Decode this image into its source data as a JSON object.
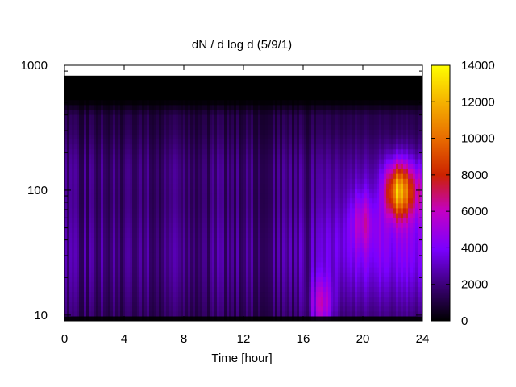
{
  "chart_data": {
    "type": "heatmap",
    "title": "dN / d log d (5/9/1)",
    "xlabel": "Time [hour]",
    "ylabel": "",
    "x_range": [
      0,
      24
    ],
    "y_range": [
      9,
      1000
    ],
    "y_scale": "log",
    "x_ticks": [
      "0",
      "4",
      "8",
      "12",
      "16",
      "20",
      "24"
    ],
    "y_ticks": [
      "10",
      "100",
      "1000"
    ],
    "colorbar": {
      "range": [
        0,
        14000
      ],
      "ticks": [
        "0",
        "2000",
        "4000",
        "6000",
        "8000",
        "10000",
        "12000",
        "14000"
      ],
      "palette": [
        "#000000",
        "#3c0078",
        "#7a00ff",
        "#c400c4",
        "#cc2200",
        "#e86a00",
        "#f5b400",
        "#ffff00"
      ]
    },
    "features": [
      {
        "t": 0,
        "d": 30,
        "value": 2500
      },
      {
        "t": 8,
        "d": 150,
        "value": 3000
      },
      {
        "t": 17.2,
        "d": 12,
        "value": 7000
      },
      {
        "t": 20,
        "d": 60,
        "value": 5500
      },
      {
        "t": 22.3,
        "d": 100,
        "value": 12000
      },
      {
        "t": 23.5,
        "d": 100,
        "value": 7000
      }
    ]
  }
}
